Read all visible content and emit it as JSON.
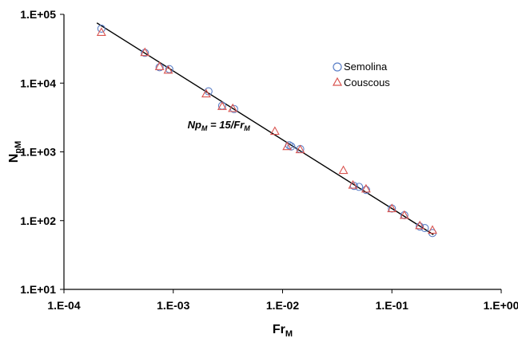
{
  "chart_data": {
    "type": "scatter",
    "x_scale": "log",
    "y_scale": "log",
    "xlim": [
      0.0001,
      1
    ],
    "ylim": [
      10,
      100000
    ],
    "xlabel_main": "Fr",
    "xlabel_sub": "M",
    "ylabel_main": "N",
    "ylabel_sub": "pM",
    "x_ticks": [
      0.0001,
      0.001,
      0.01,
      0.1,
      1
    ],
    "x_tick_labels": [
      "1.E-04",
      "1.E-03",
      "1.E-02",
      "1.E-01",
      "1.E+00"
    ],
    "y_ticks": [
      10,
      100,
      1000,
      10000,
      100000
    ],
    "y_tick_labels": [
      "1.E+01",
      "1.E+02",
      "1.E+03",
      "1.E+04",
      "1.E+05"
    ],
    "grid": false,
    "legend_position": "top-right",
    "series": [
      {
        "name": "Semolina",
        "marker": "circle",
        "color": "#5b7fc7",
        "points": [
          [
            0.00022,
            62000
          ],
          [
            0.00055,
            27500
          ],
          [
            0.00075,
            17000
          ],
          [
            0.00092,
            16000
          ],
          [
            0.0021,
            7600
          ],
          [
            0.0028,
            4700
          ],
          [
            0.0036,
            4200
          ],
          [
            0.0115,
            1250
          ],
          [
            0.012,
            1200
          ],
          [
            0.0145,
            1100
          ],
          [
            0.045,
            320
          ],
          [
            0.05,
            310
          ],
          [
            0.058,
            280
          ],
          [
            0.1,
            150
          ],
          [
            0.13,
            120
          ],
          [
            0.18,
            82
          ],
          [
            0.2,
            78
          ],
          [
            0.235,
            66
          ]
        ]
      },
      {
        "name": "Couscous",
        "marker": "triangle",
        "color": "#d9534f",
        "points": [
          [
            0.00022,
            55000
          ],
          [
            0.00055,
            28000
          ],
          [
            0.00075,
            17500
          ],
          [
            0.0009,
            15500
          ],
          [
            0.002,
            7000
          ],
          [
            0.0028,
            4600
          ],
          [
            0.0035,
            4300
          ],
          [
            0.0085,
            2000
          ],
          [
            0.011,
            1200
          ],
          [
            0.0145,
            1080
          ],
          [
            0.036,
            540
          ],
          [
            0.044,
            330
          ],
          [
            0.058,
            290
          ],
          [
            0.1,
            150
          ],
          [
            0.13,
            120
          ],
          [
            0.18,
            85
          ],
          [
            0.235,
            73
          ]
        ]
      }
    ],
    "fit_line": {
      "from": [
        0.0002,
        75000
      ],
      "to": [
        0.24,
        62.5
      ]
    },
    "annotation": {
      "text_a": "Np",
      "sub_a": "M",
      "text_b": " = 15/",
      "text_c": "Fr",
      "sub_c": "M",
      "x": 0.00135,
      "y": 2200
    }
  }
}
